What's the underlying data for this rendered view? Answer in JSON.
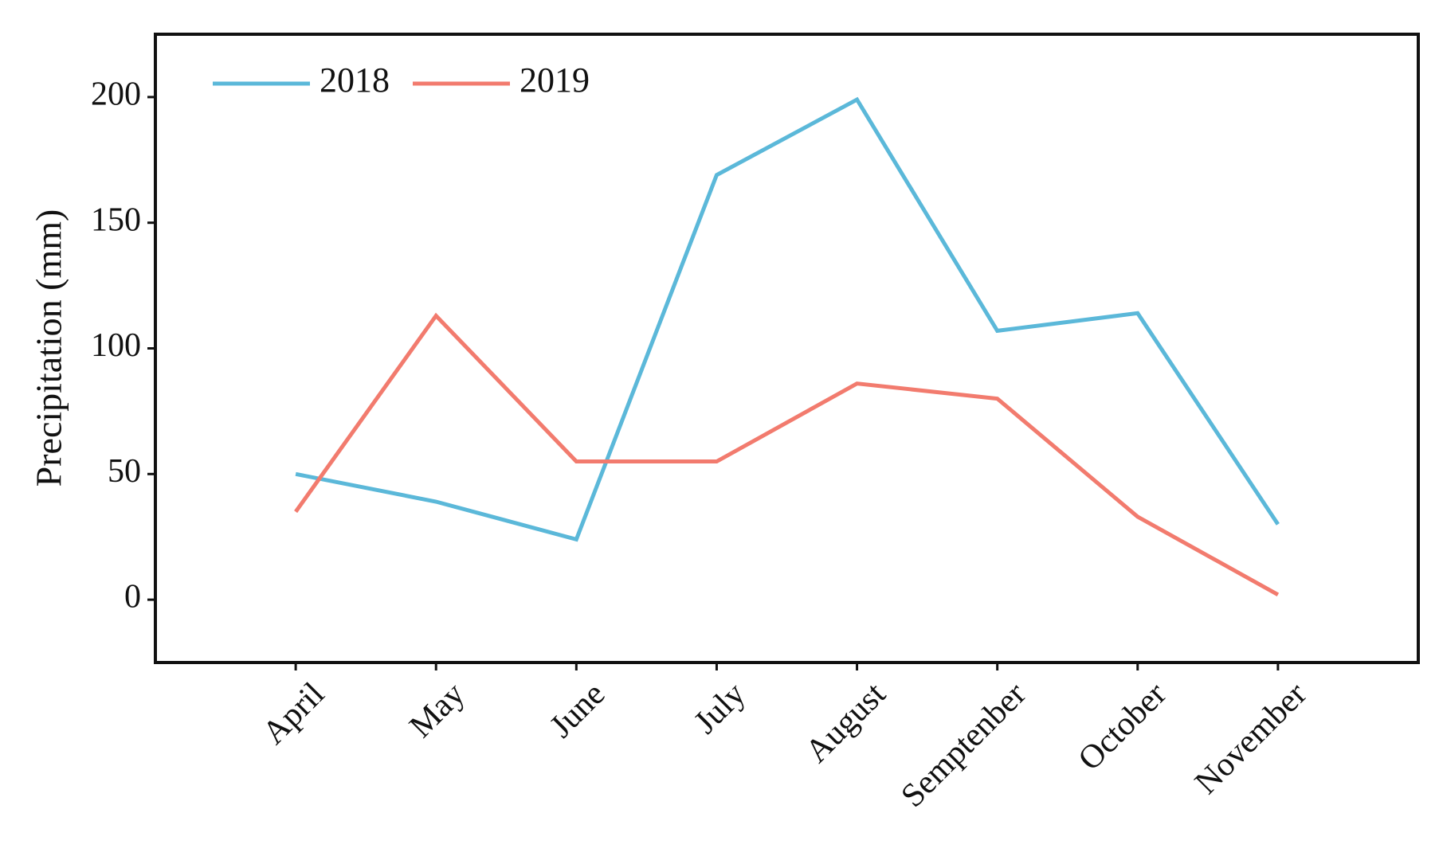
{
  "chart_data": {
    "type": "line",
    "y_label": "Precipitation (mm)",
    "categories": [
      "April",
      "May",
      "June",
      "July",
      "August",
      "Semptenber",
      "October",
      "November"
    ],
    "series": [
      {
        "name": "2018",
        "color": "#5bb8d9",
        "values": [
          50,
          39,
          24,
          169,
          199,
          107,
          114,
          30
        ]
      },
      {
        "name": "2019",
        "color": "#f27b6e",
        "values": [
          35,
          113,
          55,
          55,
          86,
          80,
          33,
          2
        ]
      }
    ],
    "ylim": [
      -25,
      225
    ],
    "yticks": [
      0,
      50,
      100,
      150,
      200
    ],
    "legend": "upper left",
    "grid": false
  }
}
